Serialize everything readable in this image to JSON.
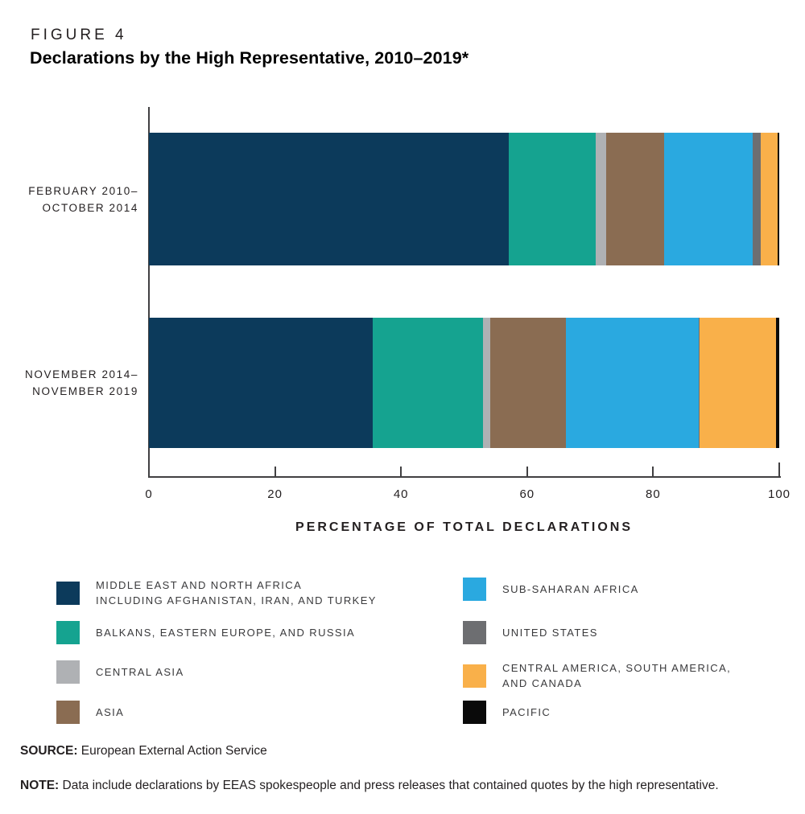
{
  "figure_label": "FIGURE 4",
  "title": "Declarations by the High Representative, 2010–2019*",
  "chart_data": {
    "type": "bar",
    "orientation": "horizontal",
    "stacked": true,
    "grid": false,
    "xlabel": "PERCENTAGE OF TOTAL DECLARATIONS",
    "xlim": [
      0,
      100
    ],
    "xticks": [
      0,
      20,
      40,
      60,
      80,
      100
    ],
    "categories": [
      [
        "FEBRUARY 2010–",
        "OCTOBER 2014"
      ],
      [
        "NOVEMBER 2014–",
        "NOVEMBER 2019"
      ]
    ],
    "series": [
      {
        "name": "MIDDLE EAST AND NORTH AFRICA INCLUDING AFGHANISTAN, IRAN, AND TURKEY",
        "color": "#0C3A5B",
        "values": [
          57.1,
          35.5
        ]
      },
      {
        "name": "BALKANS, EASTERN EUROPE, AND RUSSIA",
        "color": "#15A390",
        "values": [
          13.8,
          17.5
        ]
      },
      {
        "name": "CENTRAL ASIA",
        "color": "#AFB1B4",
        "values": [
          1.6,
          1.2
        ]
      },
      {
        "name": "ASIA",
        "color": "#8A6C52",
        "values": [
          9.2,
          12.0
        ]
      },
      {
        "name": "SUB-SAHARAN AFRICA",
        "color": "#2AA9E0",
        "values": [
          14.1,
          21.0
        ]
      },
      {
        "name": "UNITED STATES",
        "color": "#6D6E71",
        "values": [
          1.3,
          0.2
        ]
      },
      {
        "name": "CENTRAL AMERICA, SOUTH AMERICA, AND CANADA",
        "color": "#F9B04A",
        "values": [
          2.7,
          12.1
        ]
      },
      {
        "name": "PACIFIC",
        "color": "#0A0A0A",
        "values": [
          0.2,
          0.5
        ]
      }
    ]
  },
  "legend": {
    "left": [
      {
        "color": "#0C3A5B",
        "lines": [
          "MIDDLE EAST AND NORTH AFRICA",
          "INCLUDING AFGHANISTAN, IRAN, AND TURKEY"
        ]
      },
      {
        "color": "#15A390",
        "lines": [
          "BALKANS, EASTERN EUROPE, AND RUSSIA"
        ]
      },
      {
        "color": "#AFB1B4",
        "lines": [
          "CENTRAL ASIA"
        ]
      },
      {
        "color": "#8A6C52",
        "lines": [
          "ASIA"
        ]
      }
    ],
    "right": [
      {
        "color": "#2AA9E0",
        "lines": [
          "SUB-SAHARAN AFRICA"
        ]
      },
      {
        "color": "#6D6E71",
        "lines": [
          "UNITED STATES"
        ]
      },
      {
        "color": "#F9B04A",
        "lines": [
          "CENTRAL AMERICA, SOUTH AMERICA,",
          "AND CANADA"
        ]
      },
      {
        "color": "#0A0A0A",
        "lines": [
          "PACIFIC"
        ]
      }
    ]
  },
  "source": {
    "label": "SOURCE:",
    "text": "European External Action Service"
  },
  "note": {
    "label": "NOTE:",
    "text": "Data include declarations by EEAS spokespeople and press releases that contained quotes by the high representative."
  }
}
